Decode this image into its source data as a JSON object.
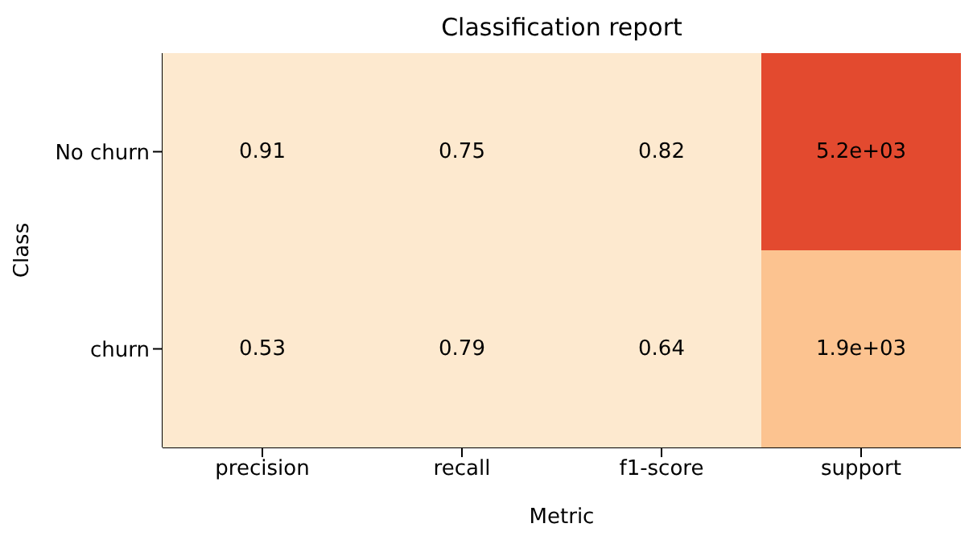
{
  "chart_data": {
    "type": "heatmap",
    "title": "Classification report",
    "xlabel": "Metric",
    "ylabel": "Class",
    "categories": [
      "precision",
      "recall",
      "f1-score",
      "support"
    ],
    "y_categories": [
      "No churn",
      "churn"
    ],
    "cells": [
      [
        0.91,
        0.75,
        0.82,
        5200
      ],
      [
        0.53,
        0.79,
        0.64,
        1900
      ]
    ],
    "cell_labels": [
      [
        "0.91",
        "0.75",
        "0.82",
        "5.2e+03"
      ],
      [
        "0.53",
        "0.79",
        "0.64",
        "1.9e+03"
      ]
    ]
  }
}
